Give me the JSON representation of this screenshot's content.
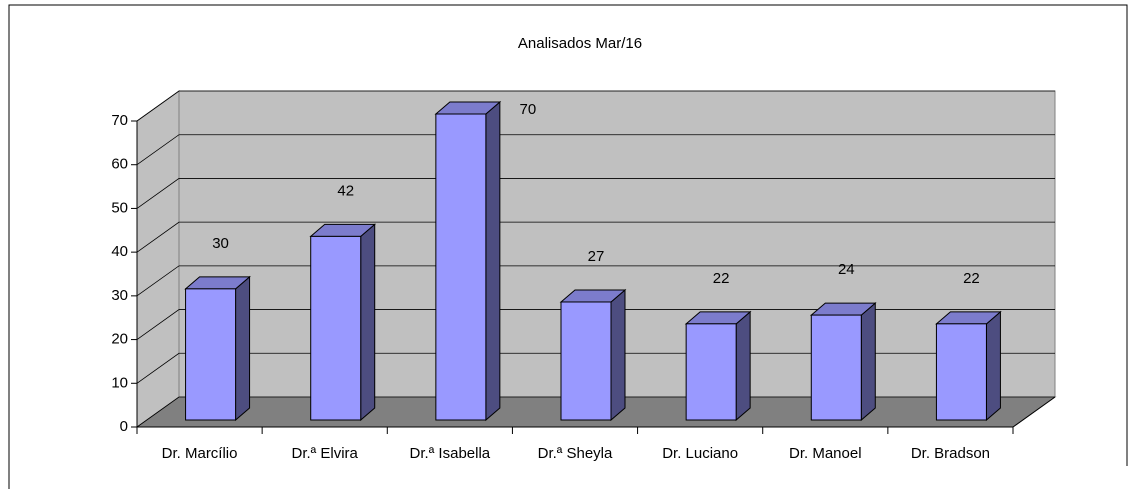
{
  "chart_data": {
    "type": "bar",
    "title": "Analisados Mar/16",
    "categories": [
      "Dr. Marcílio",
      "Dr.ª Elvira",
      "Dr.ª Isabella",
      "Dr.ª Sheyla",
      "Dr. Luciano",
      "Dr. Manoel",
      "Dr. Bradson"
    ],
    "values": [
      30,
      42,
      70,
      27,
      22,
      24,
      22
    ],
    "color": "#9999ff",
    "ylim": [
      0,
      70
    ],
    "yticks": [
      0,
      10,
      20,
      30,
      40,
      50,
      60,
      70
    ],
    "grid": true
  }
}
